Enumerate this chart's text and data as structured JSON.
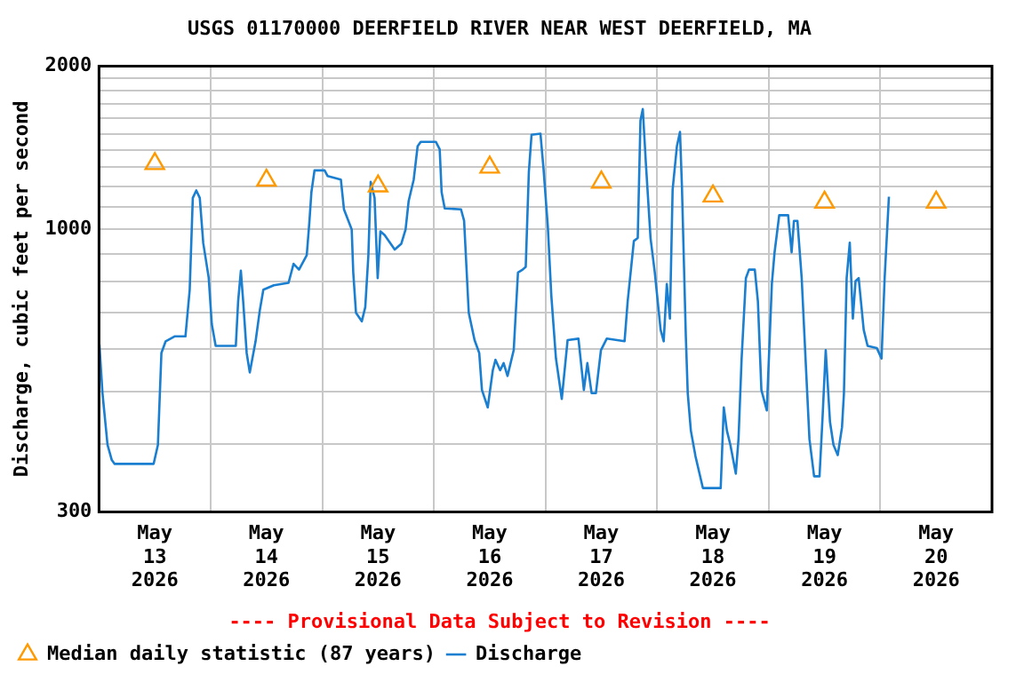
{
  "chart_data": {
    "type": "line",
    "title": "USGS 01170000 DEERFIELD RIVER NEAR WEST DEERFIELD, MA",
    "ylabel": "Discharge, cubic feet per second",
    "annotations": [
      "---- Provisional Data Subject to Revision ----"
    ],
    "log": true,
    "grid": true,
    "legend": "bottom left",
    "xlim": [
      "2026-05-13",
      "2026-05-21"
    ],
    "xticks": [
      {
        "value": "2026-05-13",
        "label": null
      },
      {
        "value": "2026-05-13T12:00",
        "label": "May\n13\n2026"
      },
      {
        "value": "2026-05-14",
        "label": null
      },
      {
        "value": "2026-05-14T12:00",
        "label": "May\n14\n2026"
      },
      {
        "value": "2026-05-15",
        "label": null
      },
      {
        "value": "2026-05-15T12:00",
        "label": "May\n15\n2026"
      },
      {
        "value": "2026-05-16",
        "label": null
      },
      {
        "value": "2026-05-16T12:00",
        "label": "May\n16\n2026"
      },
      {
        "value": "2026-05-17",
        "label": null
      },
      {
        "value": "2026-05-17T12:00",
        "label": "May\n17\n2026"
      },
      {
        "value": "2026-05-18",
        "label": null
      },
      {
        "value": "2026-05-18T12:00",
        "label": "May\n18\n2026"
      },
      {
        "value": "2026-05-19",
        "label": null
      },
      {
        "value": "2026-05-19T12:00",
        "label": "May\n19\n2026"
      },
      {
        "value": "2026-05-20",
        "label": null
      },
      {
        "value": "2026-05-20T12:00",
        "label": "May\n20\n2026"
      },
      {
        "value": "2026-05-21",
        "label": null
      }
    ],
    "ylim": [
      300,
      2000
    ],
    "yticks": [
      300,
      {
        "value": 400,
        "label": null
      },
      {
        "value": 500,
        "label": null
      },
      {
        "value": 600,
        "label": null
      },
      {
        "value": 700,
        "label": null
      },
      {
        "value": 800,
        "label": null
      },
      {
        "value": 900,
        "label": null
      },
      1000,
      {
        "value": 1100,
        "label": null
      },
      {
        "value": 1200,
        "label": null
      },
      {
        "value": 1300,
        "label": null
      },
      {
        "value": 1400,
        "label": null
      },
      {
        "value": 1500,
        "label": null
      },
      {
        "value": 1600,
        "label": null
      },
      {
        "value": 1700,
        "label": null
      },
      {
        "value": 1800,
        "label": null
      },
      {
        "value": 1900,
        "label": null
      },
      2000
    ],
    "series": [
      {
        "name": "Median daily statistic (87 years)",
        "type": "scatter",
        "marker": "triangle",
        "color": "#ff9900",
        "x": [
          "2026-05-13T12:00",
          "2026-05-14T12:00",
          "2026-05-15T12:00",
          "2026-05-16T12:00",
          "2026-05-17T12:00",
          "2026-05-18T12:00",
          "2026-05-19T12:00",
          "2026-05-20T12:00"
        ],
        "values": [
          1320,
          1230,
          1200,
          1300,
          1220,
          1150,
          1120,
          1120
        ]
      },
      {
        "name": "Discharge",
        "marker": "none",
        "color": "#1a7fd0",
        "x": [
          "2026-05-13T00:05",
          "2026-05-13T00:45",
          "2026-05-13T01:50",
          "2026-05-13T02:45",
          "2026-05-13T03:20",
          "2026-05-13T11:45",
          "2026-05-13T12:40",
          "2026-05-13T13:25",
          "2026-05-13T14:20",
          "2026-05-13T16:15",
          "2026-05-13T18:35",
          "2026-05-13T19:30",
          "2026-05-13T20:10",
          "2026-05-13T20:55",
          "2026-05-13T21:40",
          "2026-05-13T22:25",
          "2026-05-13T23:35",
          "2026-05-14T00:15",
          "2026-05-14T01:05",
          "2026-05-14T05:25",
          "2026-05-14T05:55",
          "2026-05-14T06:30",
          "2026-05-14T07:00",
          "2026-05-14T07:45",
          "2026-05-14T08:25",
          "2026-05-14T09:40",
          "2026-05-14T10:35",
          "2026-05-14T11:20",
          "2026-05-14T13:35",
          "2026-05-14T16:45",
          "2026-05-14T17:50",
          "2026-05-14T19:00",
          "2026-05-14T20:40",
          "2026-05-14T21:15",
          "2026-05-14T21:40",
          "2026-05-14T22:20",
          "2026-05-15T00:30",
          "2026-05-15T01:10",
          "2026-05-15T04:00",
          "2026-05-15T04:40",
          "2026-05-15T06:20",
          "2026-05-15T06:40",
          "2026-05-15T07:15",
          "2026-05-15T08:30",
          "2026-05-15T09:15",
          "2026-05-15T09:55",
          "2026-05-15T10:25",
          "2026-05-15T11:15",
          "2026-05-15T11:55",
          "2026-05-15T12:30",
          "2026-05-15T13:25",
          "2026-05-15T15:35",
          "2026-05-15T17:00",
          "2026-05-15T17:55",
          "2026-05-15T18:35",
          "2026-05-15T19:40",
          "2026-05-15T20:30",
          "2026-05-15T21:10",
          "2026-05-16T00:25",
          "2026-05-16T01:15",
          "2026-05-16T01:40",
          "2026-05-16T02:20",
          "2026-05-16T05:50",
          "2026-05-16T06:30",
          "2026-05-16T07:30",
          "2026-05-16T08:45",
          "2026-05-16T09:45",
          "2026-05-16T10:20",
          "2026-05-16T11:35",
          "2026-05-16T12:40",
          "2026-05-16T13:15",
          "2026-05-16T14:15",
          "2026-05-16T15:00",
          "2026-05-16T15:50",
          "2026-05-16T17:10",
          "2026-05-16T18:05",
          "2026-05-16T19:05",
          "2026-05-16T19:45",
          "2026-05-16T20:25",
          "2026-05-16T21:00",
          "2026-05-16T22:55",
          "2026-05-16T23:35",
          "2026-05-17T00:30",
          "2026-05-17T01:15",
          "2026-05-17T02:15",
          "2026-05-17T03:30",
          "2026-05-17T04:45",
          "2026-05-17T07:05",
          "2026-05-17T08:15",
          "2026-05-17T09:00",
          "2026-05-17T09:55",
          "2026-05-17T10:50",
          "2026-05-17T11:55",
          "2026-05-17T13:10",
          "2026-05-17T17:00",
          "2026-05-17T17:40",
          "2026-05-17T19:00",
          "2026-05-17T19:50",
          "2026-05-17T20:25",
          "2026-05-17T20:55",
          "2026-05-17T21:35",
          "2026-05-17T22:35",
          "2026-05-17T23:30",
          "2026-05-18T00:45",
          "2026-05-18T01:25",
          "2026-05-18T02:05",
          "2026-05-18T02:45",
          "2026-05-18T03:20",
          "2026-05-18T04:15",
          "2026-05-18T04:55",
          "2026-05-18T05:20",
          "2026-05-18T06:10",
          "2026-05-18T06:35",
          "2026-05-18T07:15",
          "2026-05-18T08:15",
          "2026-05-18T09:50",
          "2026-05-18T13:40",
          "2026-05-18T14:20",
          "2026-05-18T15:00",
          "2026-05-18T15:45",
          "2026-05-18T16:55",
          "2026-05-18T17:30",
          "2026-05-18T18:10",
          "2026-05-18T19:05",
          "2026-05-18T19:45",
          "2026-05-18T21:00",
          "2026-05-18T21:40",
          "2026-05-18T22:25",
          "2026-05-18T23:35",
          "2026-05-19T00:40",
          "2026-05-19T01:15",
          "2026-05-19T02:15",
          "2026-05-19T04:10",
          "2026-05-19T04:55",
          "2026-05-19T05:25",
          "2026-05-19T06:10",
          "2026-05-19T07:05",
          "2026-05-19T08:00",
          "2026-05-19T08:45",
          "2026-05-19T09:45",
          "2026-05-19T10:55",
          "2026-05-19T11:35",
          "2026-05-19T12:15",
          "2026-05-19T13:10",
          "2026-05-19T13:55",
          "2026-05-19T14:50",
          "2026-05-19T15:45",
          "2026-05-19T16:10",
          "2026-05-19T16:45",
          "2026-05-19T17:25",
          "2026-05-19T18:05",
          "2026-05-19T18:40",
          "2026-05-19T19:20",
          "2026-05-19T20:25",
          "2026-05-19T21:15",
          "2026-05-19T23:15",
          "2026-05-20T00:15",
          "2026-05-20T00:55",
          "2026-05-20T01:50"
        ],
        "values": [
          612,
          497,
          399,
          374,
          368,
          368,
          399,
          590,
          620,
          633,
          633,
          772,
          1141,
          1178,
          1141,
          941,
          813,
          667,
          608,
          608,
          735,
          837,
          735,
          590,
          543,
          620,
          708,
          772,
          787,
          795,
          862,
          841,
          894,
          1035,
          1169,
          1283,
          1283,
          1252,
          1234,
          1087,
          998,
          831,
          700,
          675,
          717,
          894,
          1222,
          1141,
          811,
          990,
          974,
          916,
          939,
          998,
          1127,
          1234,
          1421,
          1449,
          1449,
          1404,
          1169,
          1091,
          1087,
          1035,
          700,
          623,
          590,
          504,
          468,
          548,
          573,
          548,
          565,
          535,
          597,
          831,
          841,
          851,
          1273,
          1493,
          1500,
          1289,
          1010,
          753,
          576,
          485,
          623,
          627,
          504,
          565,
          497,
          497,
          597,
          627,
          620,
          735,
          950,
          962,
          1586,
          1666,
          1321,
          962,
          831,
          651,
          620,
          791,
          683,
          1183,
          1421,
          1511,
          1198,
          635,
          497,
          424,
          380,
          332,
          332,
          468,
          424,
          399,
          353,
          409,
          576,
          811,
          841,
          841,
          735,
          504,
          462,
          791,
          905,
          1060,
          1060,
          905,
          1035,
          1035,
          811,
          555,
          409,
          349,
          349,
          451,
          597,
          440,
          399,
          382,
          430,
          497,
          811,
          943,
          683,
          801,
          811,
          651,
          608,
          602,
          576,
          811,
          1147
        ]
      }
    ]
  }
}
